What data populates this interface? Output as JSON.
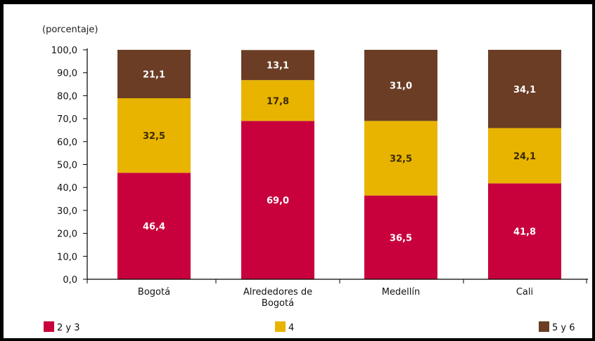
{
  "chart_data": {
    "type": "bar",
    "stacked": true,
    "ylabel": "(porcentaje)",
    "ylim": [
      0,
      100
    ],
    "yticks": [
      "0,0",
      "10,0",
      "20,0",
      "30,0",
      "40,0",
      "50,0",
      "60,0",
      "70,0",
      "80,0",
      "90,0",
      "100,0"
    ],
    "ytick_values": [
      0,
      10,
      20,
      30,
      40,
      50,
      60,
      70,
      80,
      90,
      100
    ],
    "categories": [
      [
        "Bogotá"
      ],
      [
        "Alrededores de",
        "Bogotá"
      ],
      [
        "Medellín"
      ],
      [
        "Cali"
      ]
    ],
    "series": [
      {
        "name": "2 y 3",
        "color": "#c8003c",
        "label_color": "#ffffff",
        "values": [
          46.4,
          69.0,
          36.5,
          41.8
        ],
        "labels": [
          "46,4",
          "69,0",
          "36,5",
          "41,8"
        ]
      },
      {
        "name": "4",
        "color": "#e8b400",
        "label_color": "#3a2a00",
        "values": [
          32.5,
          17.8,
          32.5,
          24.1
        ],
        "labels": [
          "32,5",
          "17,8",
          "32,5",
          "24,1"
        ]
      },
      {
        "name": "5 y 6",
        "color": "#6b3d25",
        "label_color": "#ffffff",
        "values": [
          21.1,
          13.1,
          31.0,
          34.1
        ],
        "labels": [
          "21,1",
          "13,1",
          "31,0",
          "34,1"
        ]
      }
    ],
    "legend_position": "bottom",
    "grid": false
  }
}
